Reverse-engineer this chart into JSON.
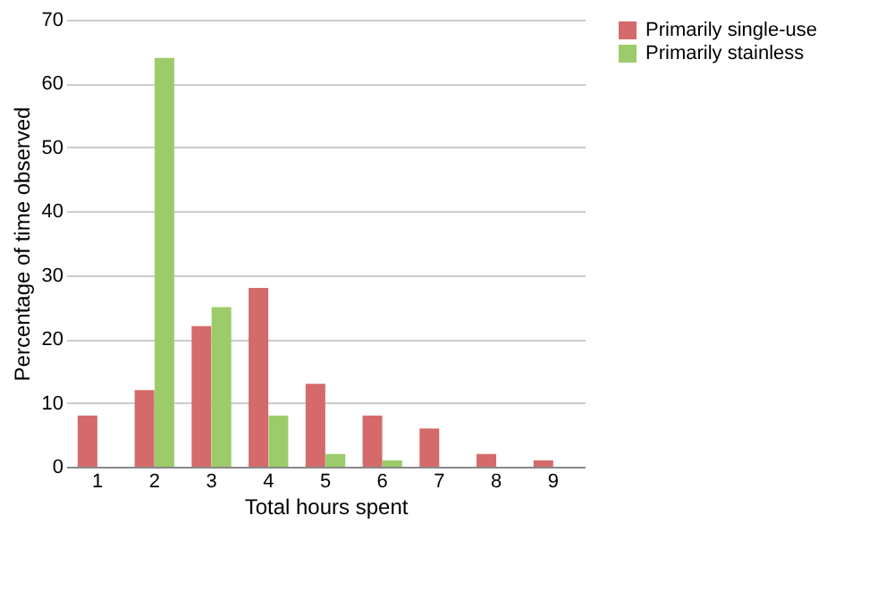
{
  "chart_data": {
    "type": "bar",
    "xlabel": "Total hours spent",
    "ylabel": "Percentage of time observed",
    "categories": [
      "1",
      "2",
      "3",
      "4",
      "5",
      "6",
      "7",
      "8",
      "9"
    ],
    "series": [
      {
        "name": "Primarily single-use",
        "color": "#d46a6a",
        "values": [
          8,
          12,
          22,
          28,
          13,
          8,
          6,
          2,
          1
        ]
      },
      {
        "name": "Primarily stainless",
        "color": "#9ccc6a",
        "values": [
          null,
          64,
          25,
          8,
          2,
          1,
          null,
          null,
          null
        ]
      }
    ],
    "ylim": [
      0,
      70
    ],
    "yticks": [
      0,
      10,
      20,
      30,
      40,
      50,
      60,
      70
    ],
    "grid": "y",
    "legend": "right"
  }
}
